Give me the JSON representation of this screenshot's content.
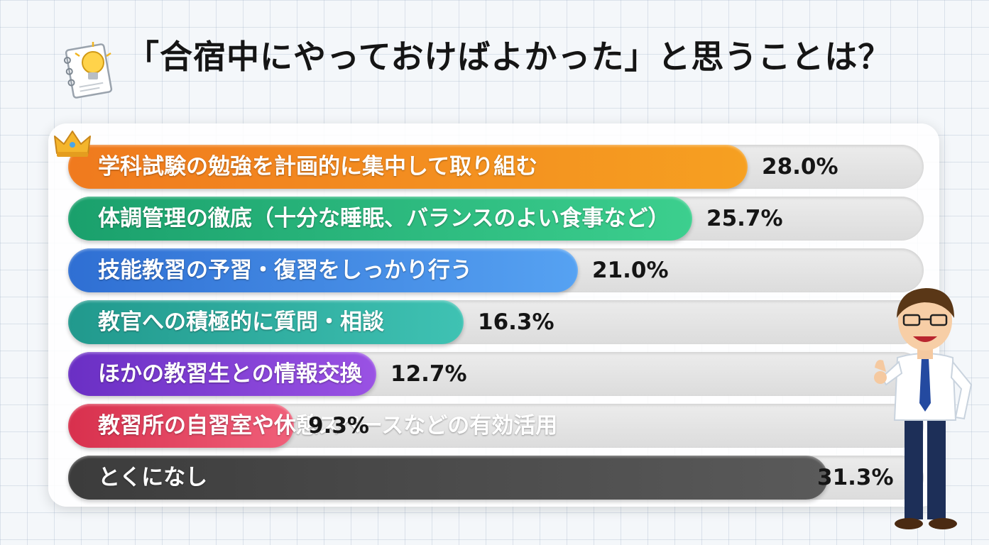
{
  "title": "「合宿中にやっておけばよかった」と思うことは？",
  "icons": [
    "memo-lightbulb-icon",
    "crown-icon",
    "mascot-man-thumbs-up"
  ],
  "chart_data": {
    "type": "bar",
    "orientation": "horizontal",
    "max": 31.3,
    "categories": [
      "学科試験の勉強を計画的に集中して取り組む",
      "体調管理の徹底（十分な睡眠、バランスのよい食事など）",
      "技能教習の予習・復習をしっかり行う",
      "教官への積極的に質問・相談",
      "ほかの教習生との情報交換",
      "教習所の自習室や休憩スペースなどの有効活用",
      "とくになし"
    ],
    "values": [
      28.0,
      25.7,
      21.0,
      16.3,
      12.7,
      9.3,
      31.3
    ],
    "value_labels": [
      "28.0%",
      "25.7%",
      "21.0%",
      "16.3%",
      "12.7%",
      "9.3%",
      "31.3%"
    ],
    "colors": [
      [
        "#f07a1e",
        "#f6a021"
      ],
      [
        "#1aa06c",
        "#3ccf8e"
      ],
      [
        "#2f6fd3",
        "#56a2f2"
      ],
      [
        "#21998d",
        "#3fc2b3"
      ],
      [
        "#6a2fc4",
        "#9a52e4"
      ],
      [
        "#d8304d",
        "#f0607a"
      ],
      [
        "#3c3c3c",
        "#5a5a5a"
      ]
    ]
  }
}
